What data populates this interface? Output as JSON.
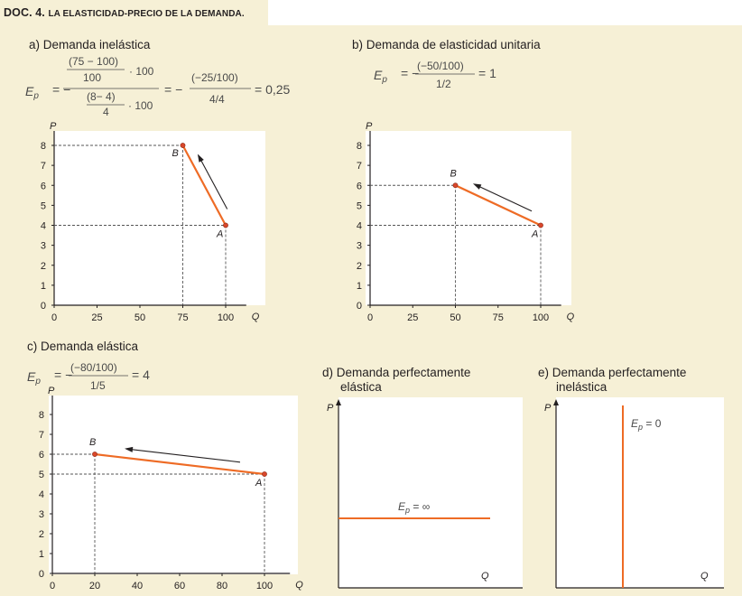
{
  "doc": {
    "title_num": "DOC. 4.",
    "title_text": "La elasticidad-precio de la demanda."
  },
  "sections": {
    "a": {
      "title": "a)  Demanda inelástica",
      "formula": {
        "lhs": "E",
        "sub": "p",
        "num_top": "(75 − 100)",
        "num_top_den": "100",
        "mult1": "· 100",
        "den_top": "(8− 4)",
        "den_den": "4",
        "mult2": "· 100",
        "eq": "= −",
        "frac2_num": "(−25/100)",
        "frac2_den": "4/4",
        "result": "= 0,25"
      }
    },
    "b": {
      "title": "b)  Demanda de elasticidad unitaria",
      "formula": {
        "num": "(−50/100)",
        "den": "1/2",
        "result": "= 1"
      }
    },
    "c": {
      "title": "c)  Demanda elástica",
      "formula": {
        "num": "(−80/100)",
        "den": "1/5",
        "result": "= 4"
      }
    },
    "d": {
      "title_line1": "d)  Demanda perfectamente",
      "title_line2": "elástica",
      "label": "E",
      "label_sub": "p",
      "label_val": " = ∞"
    },
    "e": {
      "title_line1": "e)  Demanda perfectamente",
      "title_line2": "inelástica",
      "label": "E",
      "label_sub": "p",
      "label_val": " = 0"
    }
  },
  "axis_labels": {
    "y": "P",
    "x": "Q"
  },
  "colors": {
    "curve": "#ee6b25",
    "point": "#d9472b",
    "panel": "#ffffff",
    "bg": "#f6f0d6"
  },
  "chart_data": [
    {
      "id": "a",
      "type": "line",
      "xlabel": "Q",
      "ylabel": "P",
      "xticks": [
        0,
        25,
        50,
        75,
        100
      ],
      "yticks": [
        0,
        1,
        2,
        3,
        4,
        5,
        6,
        7,
        8
      ],
      "xlim": [
        0,
        112
      ],
      "ylim": [
        0,
        8.6
      ],
      "points": [
        {
          "name": "A",
          "x": 100,
          "y": 4
        },
        {
          "name": "B",
          "x": 75,
          "y": 8
        }
      ],
      "arrow": "A→B"
    },
    {
      "id": "b",
      "type": "line",
      "xlabel": "Q",
      "ylabel": "P",
      "xticks": [
        0,
        25,
        50,
        75,
        100
      ],
      "yticks": [
        0,
        1,
        2,
        3,
        4,
        5,
        6,
        7,
        8
      ],
      "xlim": [
        0,
        112
      ],
      "ylim": [
        0,
        8.6
      ],
      "points": [
        {
          "name": "A",
          "x": 100,
          "y": 4
        },
        {
          "name": "B",
          "x": 50,
          "y": 6
        }
      ],
      "arrow": "A→B"
    },
    {
      "id": "c",
      "type": "line",
      "xlabel": "Q",
      "ylabel": "P",
      "xticks": [
        0,
        20,
        40,
        60,
        80,
        100
      ],
      "yticks": [
        0,
        1,
        2,
        3,
        4,
        5,
        6,
        7,
        8
      ],
      "xlim": [
        0,
        112
      ],
      "ylim": [
        0,
        8.6
      ],
      "points": [
        {
          "name": "A",
          "x": 100,
          "y": 5
        },
        {
          "name": "B",
          "x": 20,
          "y": 6
        }
      ],
      "arrow": "A→B"
    },
    {
      "id": "d",
      "type": "line",
      "xlabel": "Q",
      "ylabel": "P",
      "orientation": "horizontal",
      "elasticity": "∞"
    },
    {
      "id": "e",
      "type": "line",
      "xlabel": "Q",
      "ylabel": "P",
      "orientation": "vertical",
      "elasticity": "0"
    }
  ]
}
